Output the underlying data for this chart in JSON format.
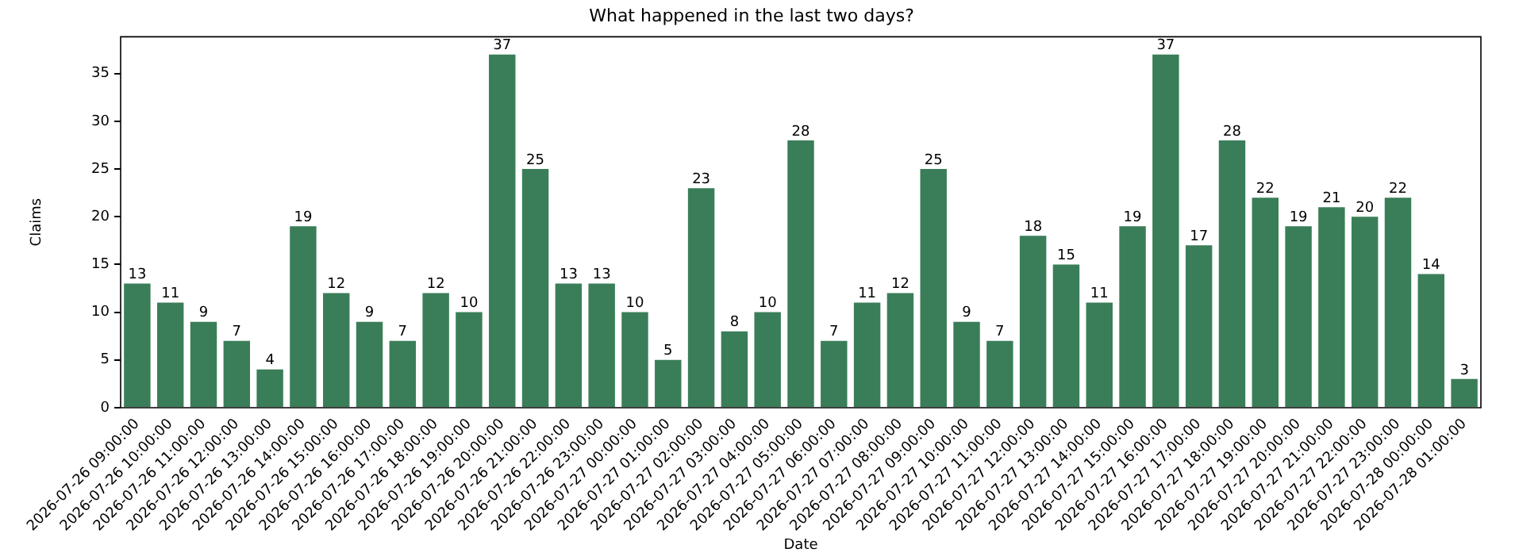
{
  "chart_data": {
    "type": "bar",
    "title": "What happened in the last two days?",
    "xlabel": "Date",
    "ylabel": "Claims",
    "categories": [
      "2026-07-26 09:00:00",
      "2026-07-26 10:00:00",
      "2026-07-26 11:00:00",
      "2026-07-26 12:00:00",
      "2026-07-26 13:00:00",
      "2026-07-26 14:00:00",
      "2026-07-26 15:00:00",
      "2026-07-26 16:00:00",
      "2026-07-26 17:00:00",
      "2026-07-26 18:00:00",
      "2026-07-26 19:00:00",
      "2026-07-26 20:00:00",
      "2026-07-26 21:00:00",
      "2026-07-26 22:00:00",
      "2026-07-26 23:00:00",
      "2026-07-27 00:00:00",
      "2026-07-27 01:00:00",
      "2026-07-27 02:00:00",
      "2026-07-27 03:00:00",
      "2026-07-27 04:00:00",
      "2026-07-27 05:00:00",
      "2026-07-27 06:00:00",
      "2026-07-27 07:00:00",
      "2026-07-27 08:00:00",
      "2026-07-27 09:00:00",
      "2026-07-27 10:00:00",
      "2026-07-27 11:00:00",
      "2026-07-27 12:00:00",
      "2026-07-27 13:00:00",
      "2026-07-27 14:00:00",
      "2026-07-27 15:00:00",
      "2026-07-27 16:00:00",
      "2026-07-27 17:00:00",
      "2026-07-27 18:00:00",
      "2026-07-27 19:00:00",
      "2026-07-27 20:00:00",
      "2026-07-27 21:00:00",
      "2026-07-27 22:00:00",
      "2026-07-27 23:00:00",
      "2026-07-28 00:00:00",
      "2026-07-28 01:00:00"
    ],
    "values": [
      13,
      11,
      9,
      7,
      4,
      19,
      12,
      9,
      7,
      12,
      10,
      37,
      25,
      13,
      13,
      10,
      5,
      23,
      8,
      10,
      28,
      7,
      11,
      12,
      25,
      9,
      7,
      18,
      15,
      11,
      19,
      37,
      17,
      28,
      22,
      19,
      21,
      20,
      22,
      14,
      3
    ],
    "color": "#3a7e59",
    "ylim": [
      0,
      38.85
    ],
    "yticks": [
      0,
      5,
      10,
      15,
      20,
      25,
      30,
      35
    ],
    "grid": false,
    "legend": false,
    "data_labels": true
  }
}
